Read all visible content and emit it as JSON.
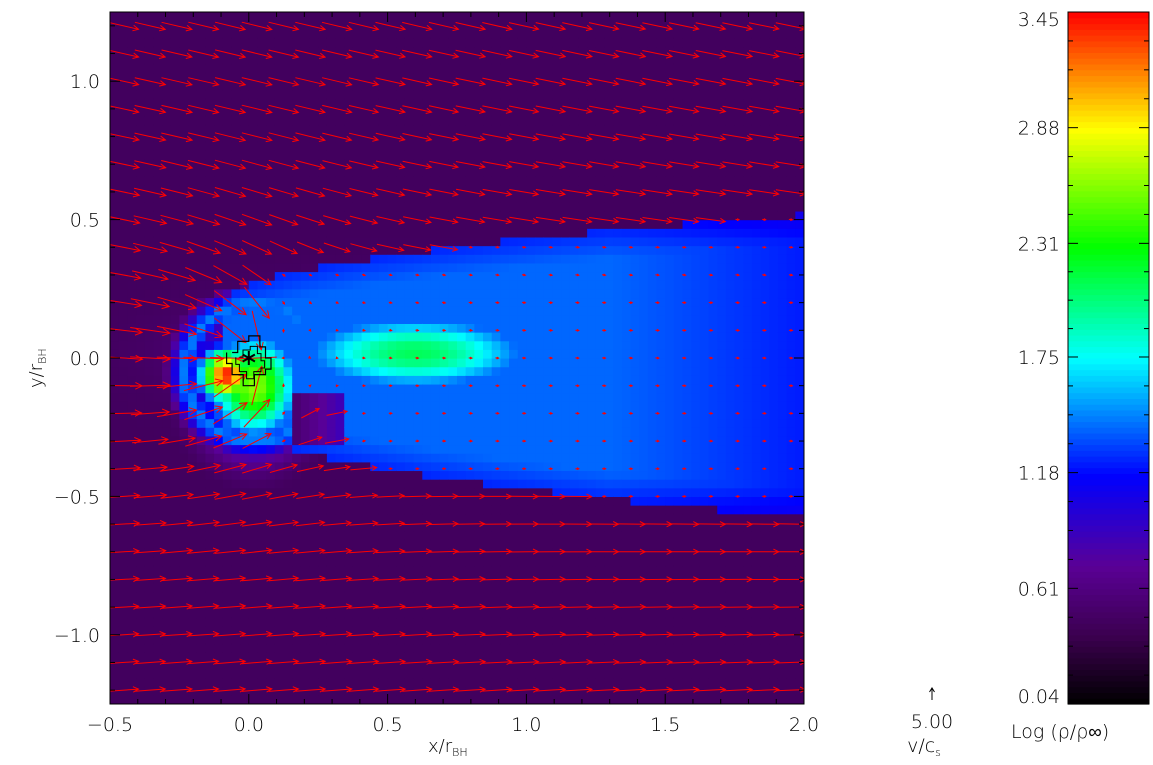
{
  "chart_data": {
    "type": "heatmap",
    "title": "",
    "xlabel": "x/r",
    "xlabel_sub": "BH",
    "ylabel": "y/r",
    "ylabel_sub": "BH",
    "xlim": [
      -0.5,
      2.0
    ],
    "ylim": [
      -1.25,
      1.25
    ],
    "xticks": [
      -0.5,
      0.0,
      0.5,
      1.0,
      1.5,
      2.0
    ],
    "xtick_labels": [
      "−0.5",
      "0.0",
      "0.5",
      "1.0",
      "1.5",
      "2.0"
    ],
    "yticks": [
      -1.0,
      -0.5,
      0.0,
      0.5,
      1.0
    ],
    "ytick_labels": [
      "−1.0",
      "−0.5",
      "0.0",
      "0.5",
      "1.0"
    ],
    "colorbar": {
      "label": "Log (ρ/ρ∞)",
      "min": 0.04,
      "max": 3.45,
      "ticks": [
        0.04,
        0.61,
        1.18,
        1.75,
        2.31,
        2.88,
        3.45
      ],
      "tick_labels": [
        "0.04",
        "0.61",
        "1.18",
        "1.75",
        "2.31",
        "2.88",
        "3.45"
      ]
    },
    "vector_key": {
      "value": "5.00",
      "label": "v/c",
      "label_sub": "s"
    },
    "vector_color": "#ff0000",
    "marker": {
      "symbol": "asterisk",
      "x": 0.0,
      "y": 0.0
    },
    "grid": false
  }
}
